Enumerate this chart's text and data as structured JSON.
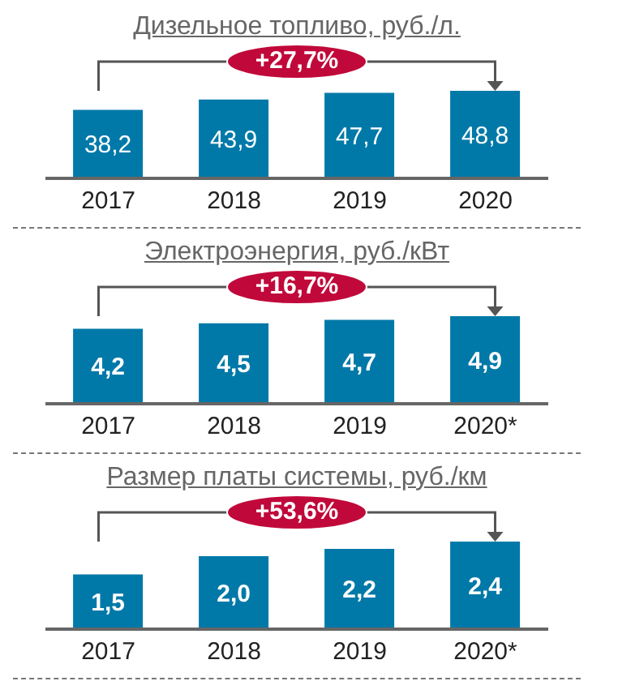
{
  "chart_data": [
    {
      "type": "bar",
      "title": "Дизельное топливо, руб./л.",
      "categories": [
        "2017",
        "2018",
        "2019",
        "2020"
      ],
      "values": [
        38.2,
        43.9,
        47.7,
        48.8
      ],
      "value_labels": [
        "38,2",
        "43,9",
        "47,7",
        "48,8"
      ],
      "color": "#0079a8",
      "annotations": [
        "+27,7%"
      ]
    },
    {
      "type": "bar",
      "title": "Электроэнергия, руб./кВт",
      "categories": [
        "2017",
        "2018",
        "2019",
        "2020*"
      ],
      "values": [
        4.2,
        4.5,
        4.7,
        4.9
      ],
      "value_labels": [
        "4,2",
        "4,5",
        "4,7",
        "4,9"
      ],
      "color": "#0079a8",
      "annotations": [
        "+16,7%"
      ]
    },
    {
      "type": "bar",
      "title": "Размер платы системы, руб./км",
      "categories": [
        "2017",
        "2018",
        "2019",
        "2020*"
      ],
      "values": [
        1.5,
        2.0,
        2.2,
        2.4
      ],
      "value_labels": [
        "1,5",
        "2,0",
        "2,2",
        "2,4"
      ],
      "color": "#0079a8",
      "annotations": [
        "+53,6%"
      ]
    }
  ]
}
